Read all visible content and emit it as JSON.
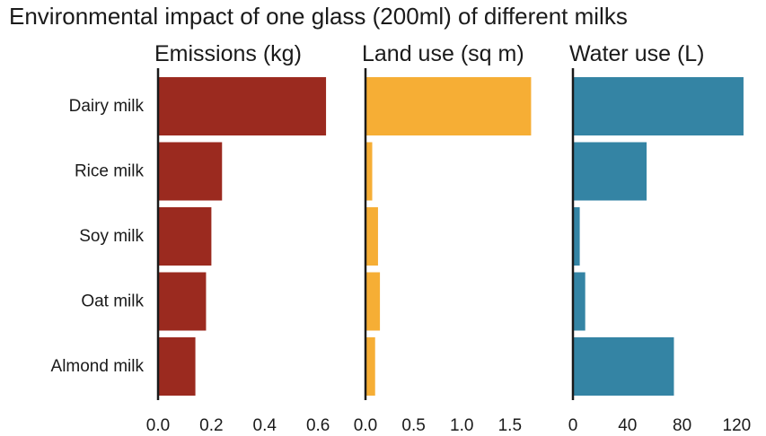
{
  "chart_data": {
    "type": "bar",
    "orientation": "horizontal",
    "title": "Environmental impact of one glass (200ml) of different milks",
    "categories": [
      "Dairy milk",
      "Rice milk",
      "Soy milk",
      "Oat milk",
      "Almond milk"
    ],
    "panels": [
      {
        "name": "Emissions (kg)",
        "color": "#9b2a1f",
        "values": [
          0.63,
          0.24,
          0.2,
          0.18,
          0.14
        ],
        "xlim": [
          0,
          0.65
        ],
        "ticks": [
          "0.0",
          "0.2",
          "0.4",
          "0.6"
        ]
      },
      {
        "name": "Land use (sq m)",
        "color": "#f6ae35",
        "values": [
          1.72,
          0.07,
          0.13,
          0.15,
          0.1
        ],
        "xlim": [
          0,
          1.8
        ],
        "ticks": [
          "0.0",
          "0.5",
          "1.0",
          "1.5"
        ]
      },
      {
        "name": "Water use (L)",
        "color": "#3484a4",
        "values": [
          125,
          54,
          5,
          9,
          74
        ],
        "xlim": [
          0,
          127
        ],
        "ticks": [
          "0",
          "40",
          "80",
          "120"
        ]
      }
    ],
    "grid": false,
    "legend": "none"
  }
}
